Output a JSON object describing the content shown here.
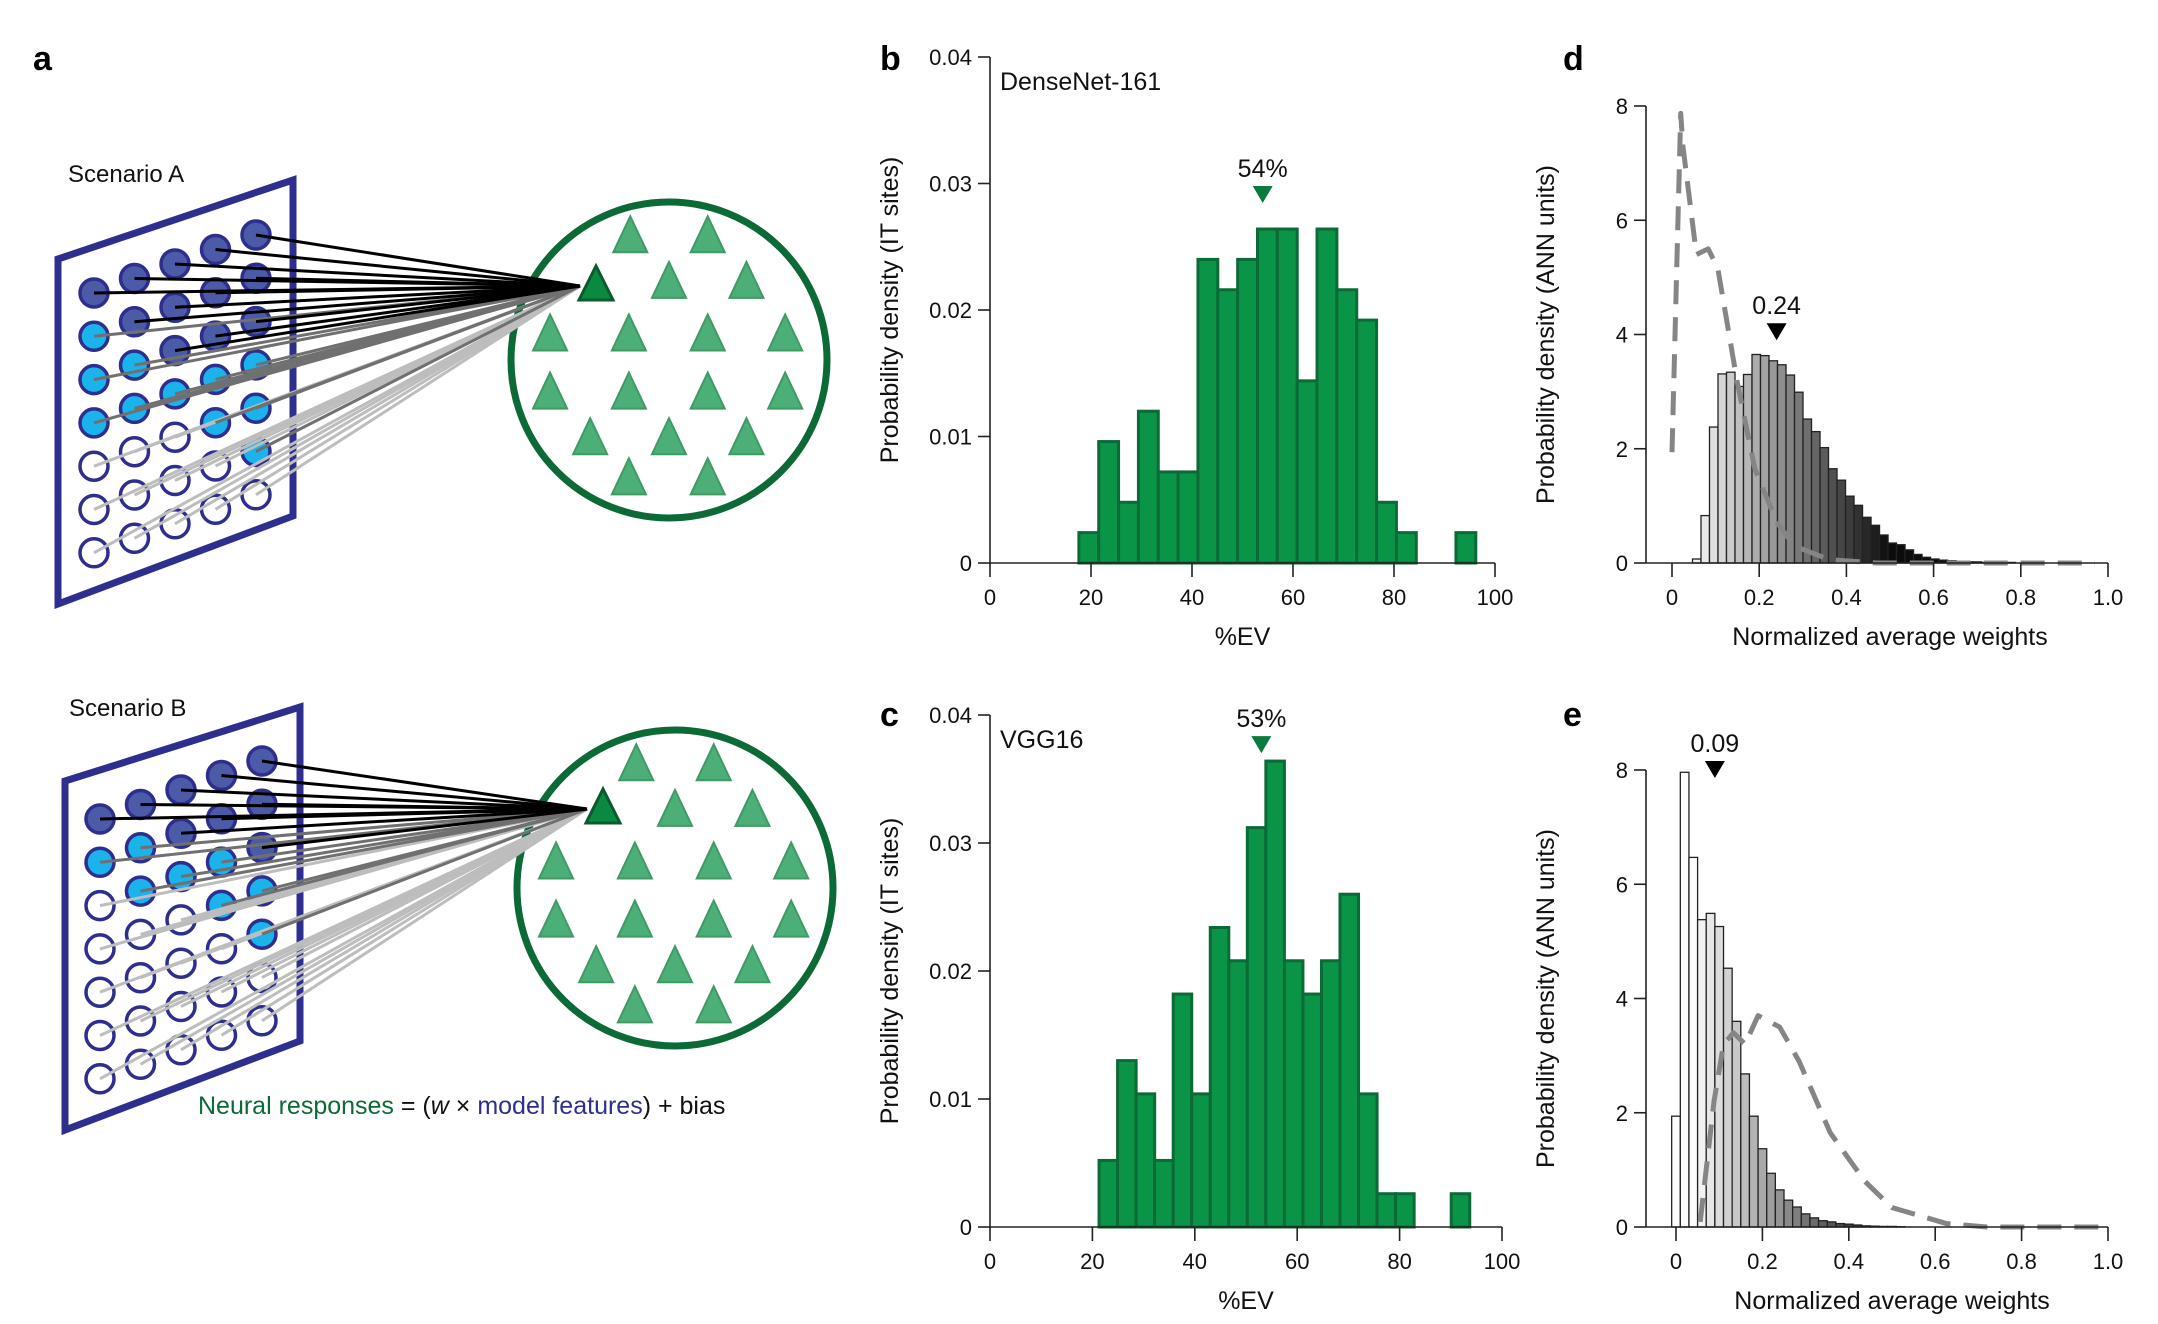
{
  "panel_letters": {
    "a": "a",
    "b": "b",
    "c": "c",
    "d": "d",
    "e": "e"
  },
  "diagram": {
    "colors": {
      "plane": "#2e2e8f",
      "strong_unit": "#4b5ba8",
      "moderate_unit": "#1ab3ec",
      "weak_unit": "#ffffff",
      "population": "#0b6a35",
      "site": "#4caf78",
      "target_site": "#0a8a40",
      "strong_line": "#000000",
      "moderate_line": "#707070",
      "weak_line": "#bdbdbd"
    },
    "scenarios": [
      {
        "label": "Scenario A",
        "unit_columns": [
          [
            "strong",
            "moderate",
            "moderate",
            "moderate",
            "weak",
            "weak",
            "weak"
          ],
          [
            "strong",
            "strong",
            "moderate",
            "moderate",
            "weak",
            "weak",
            "weak"
          ],
          [
            "strong",
            "strong",
            "strong",
            "moderate",
            "weak",
            "weak",
            "weak"
          ],
          [
            "strong",
            "strong",
            "strong",
            "moderate",
            "moderate",
            "weak",
            "weak"
          ],
          [
            "strong",
            "strong",
            "strong",
            "moderate",
            "moderate",
            "moderate",
            "weak"
          ]
        ]
      },
      {
        "label": "Scenario B",
        "unit_columns": [
          [
            "strong",
            "moderate",
            "weak",
            "weak",
            "weak",
            "weak",
            "weak"
          ],
          [
            "strong",
            "moderate",
            "moderate",
            "weak",
            "weak",
            "weak",
            "weak"
          ],
          [
            "strong",
            "strong",
            "moderate",
            "weak",
            "weak",
            "weak",
            "weak"
          ],
          [
            "strong",
            "strong",
            "moderate",
            "moderate",
            "weak",
            "weak",
            "weak"
          ],
          [
            "strong",
            "strong",
            "strong",
            "moderate",
            "moderate",
            "weak",
            "weak"
          ]
        ]
      }
    ],
    "equation": {
      "neural": "Neural responses",
      "eq_open": " = (",
      "w": "w",
      "times": " × ",
      "features": "model features",
      "close": ") + bias"
    }
  },
  "chart_data": [
    {
      "id": "b",
      "type": "bar",
      "model": "DenseNet-161",
      "xlabel": "%EV",
      "ylabel": "Probability density (IT sites)",
      "xlim": [
        0,
        100
      ],
      "ylim": [
        0,
        0.04
      ],
      "xticks": [
        0,
        20,
        40,
        60,
        80,
        100
      ],
      "xtick_labels": [
        "0",
        "20",
        "40",
        "60",
        "80",
        "100"
      ],
      "yticks": [
        0,
        0.01,
        0.02,
        0.03,
        0.04
      ],
      "ytick_labels": [
        "0",
        "0.01",
        "0.02",
        "0.03",
        "0.04"
      ],
      "bin_start": 17.6,
      "bin_width": 3.93,
      "values": [
        0.0024,
        0.0096,
        0.0048,
        0.012,
        0.0072,
        0.0072,
        0.024,
        0.0216,
        0.024,
        0.0264,
        0.0264,
        0.0144,
        0.0264,
        0.0216,
        0.0192,
        0.0048,
        0.0024,
        0,
        0,
        0.0024
      ],
      "bar_color": "#0a9447",
      "bar_edge": "#0b6a35",
      "marker": {
        "value": 54,
        "label": "54%",
        "color": "#0b7a3e"
      }
    },
    {
      "id": "c",
      "type": "bar",
      "model": "VGG16",
      "xlabel": "%EV",
      "ylabel": "Probability density (IT sites)",
      "xlim": [
        0,
        100
      ],
      "ylim": [
        0,
        0.04
      ],
      "xticks": [
        0,
        20,
        40,
        60,
        80,
        100
      ],
      "xtick_labels": [
        "0",
        "20",
        "40",
        "60",
        "80",
        "100"
      ],
      "yticks": [
        0,
        0.01,
        0.02,
        0.03,
        0.04
      ],
      "ytick_labels": [
        "0",
        "0.01",
        "0.02",
        "0.03",
        "0.04"
      ],
      "bin_start": 21.3,
      "bin_width": 3.62,
      "values": [
        0.0052,
        0.013,
        0.0104,
        0.0052,
        0.0182,
        0.0104,
        0.0234,
        0.0208,
        0.0312,
        0.0364,
        0.0208,
        0.0182,
        0.0208,
        0.026,
        0.0104,
        0.0026,
        0.0026,
        0,
        0,
        0.0026
      ],
      "bar_color": "#0a9447",
      "bar_edge": "#0b6a35",
      "marker": {
        "value": 53,
        "label": "53%",
        "color": "#0b7a3e"
      }
    },
    {
      "id": "d",
      "type": "bar",
      "model": "",
      "xlabel": "Normalized average weights",
      "ylabel": "Probability density (ANN units)",
      "xlim": [
        0,
        1.0
      ],
      "ylim": [
        0,
        8
      ],
      "xticks": [
        0,
        0.2,
        0.4,
        0.6,
        0.8,
        1.0
      ],
      "xtick_labels": [
        "0",
        "0.2",
        "0.4",
        "0.6",
        "0.8",
        "1.0"
      ],
      "yticks": [
        0,
        2,
        4,
        6,
        8
      ],
      "ytick_labels": [
        "0",
        "2",
        "4",
        "6",
        "8"
      ],
      "bin_start": 0.047,
      "bin_width": 0.0195,
      "values": [
        0.07,
        0.83,
        2.38,
        3.31,
        3.34,
        3.09,
        3.3,
        3.65,
        3.63,
        3.54,
        3.47,
        3.29,
        2.99,
        2.52,
        2.3,
        2.02,
        1.65,
        1.45,
        1.17,
        1.01,
        0.8,
        0.66,
        0.49,
        0.35,
        0.32,
        0.23,
        0.15,
        0.1,
        0.07,
        0.05,
        0.04,
        0.03,
        0.02,
        0.02,
        0.01,
        0.01,
        0.01,
        0.01
      ],
      "bar_color_scale": "grayscale-by-x",
      "dashed_line": {
        "color": "#858585",
        "x": [
          0,
          0.02,
          0.025,
          0.056,
          0.083,
          0.105,
          0.15,
          0.19,
          0.24,
          0.28,
          0.36,
          0.47,
          0.97
        ],
        "y": [
          1.94,
          7.87,
          7.3,
          5.4,
          5.5,
          5.16,
          3.15,
          1.65,
          0.72,
          0.3,
          0.06,
          0,
          0
        ]
      },
      "marker": {
        "value": 0.24,
        "label": "0.24",
        "color": "#000000"
      }
    },
    {
      "id": "e",
      "type": "bar",
      "model": "",
      "xlabel": "Normalized average weights",
      "ylabel": "Probability density (ANN units)",
      "xlim": [
        0,
        1.0
      ],
      "ylim": [
        0,
        8
      ],
      "xticks": [
        0,
        0.2,
        0.4,
        0.6,
        0.8,
        1.0
      ],
      "xtick_labels": [
        "0",
        "0.2",
        "0.4",
        "0.6",
        "0.8",
        "1.0"
      ],
      "yticks": [
        0,
        2,
        4,
        6,
        8
      ],
      "ytick_labels": [
        "0",
        "2",
        "4",
        "6",
        "8"
      ],
      "bin_start": -0.01,
      "bin_width": 0.02,
      "values": [
        1.94,
        7.96,
        6.47,
        5.38,
        5.49,
        5.26,
        4.53,
        3.6,
        2.68,
        1.94,
        1.37,
        0.94,
        0.65,
        0.47,
        0.35,
        0.23,
        0.16,
        0.11,
        0.09,
        0.06,
        0.05,
        0.035,
        0.02,
        0.015,
        0.01,
        0.01,
        0.005
      ],
      "bar_color_scale": "grayscale-by-x",
      "dashed_line": {
        "color": "#858585",
        "x": [
          0.056,
          0.088,
          0.11,
          0.133,
          0.16,
          0.19,
          0.24,
          0.285,
          0.357,
          0.437,
          0.5,
          0.626,
          0.72,
          0.99
        ],
        "y": [
          0.09,
          2.2,
          3.2,
          3.4,
          3.2,
          3.7,
          3.5,
          2.9,
          1.65,
          0.8,
          0.34,
          0.06,
          0,
          0
        ]
      },
      "marker": {
        "value": 0.09,
        "label": "0.09",
        "color": "#000000"
      }
    }
  ]
}
